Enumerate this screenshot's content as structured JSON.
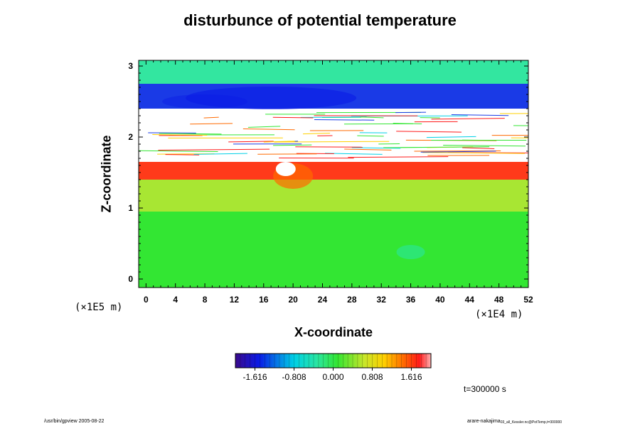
{
  "chart_data": {
    "type": "heatmap",
    "title": "disturbunce of potential temperature",
    "xlabel": "X-coordinate",
    "ylabel": "Z-coordinate",
    "x_unit": "(×1E4 m)",
    "y_unit": "(×1E5 m)",
    "x_ticks": [
      "0",
      "4",
      "8",
      "12",
      "16",
      "20",
      "24",
      "28",
      "32",
      "36",
      "40",
      "44",
      "48",
      "52"
    ],
    "y_ticks": [
      "0",
      "1",
      "2",
      "3"
    ],
    "xlim": [
      -1,
      52
    ],
    "ylim": [
      -0.12,
      3.08
    ],
    "colorbar": {
      "range": [
        -2.02,
        2.02
      ],
      "tick_labels": [
        "-1.616",
        "-0.808",
        "0.000",
        "0.808",
        "1.616"
      ],
      "tick_values": [
        -1.616,
        -0.808,
        0.0,
        0.808,
        1.616
      ]
    },
    "field_bands": [
      {
        "z": [
          -0.12,
          0.95
        ],
        "level": 0.05,
        "description_color": "#33e633"
      },
      {
        "z": [
          0.95,
          1.4
        ],
        "level": 0.45,
        "description_color": "#a8e633"
      },
      {
        "z": [
          1.4,
          1.65
        ],
        "level": 1.55,
        "description_color": "#ff3a1a"
      },
      {
        "z": [
          1.65,
          2.4
        ],
        "level": null,
        "description_color": "#ffffff"
      },
      {
        "z": [
          2.4,
          2.75
        ],
        "level": -1.4,
        "description_color": "#1a3ae6"
      },
      {
        "z": [
          2.75,
          3.08
        ],
        "level": 0.0,
        "description_color": "#33e6a0"
      }
    ]
  },
  "time_label": "t=300000 s",
  "footer_left": "/usr/bin/gpview 2005-08-22",
  "footer_right": "arare-nakajima",
  "footer_right_sub": "03_all_Kessler.nc@PotTemp,t=300000"
}
